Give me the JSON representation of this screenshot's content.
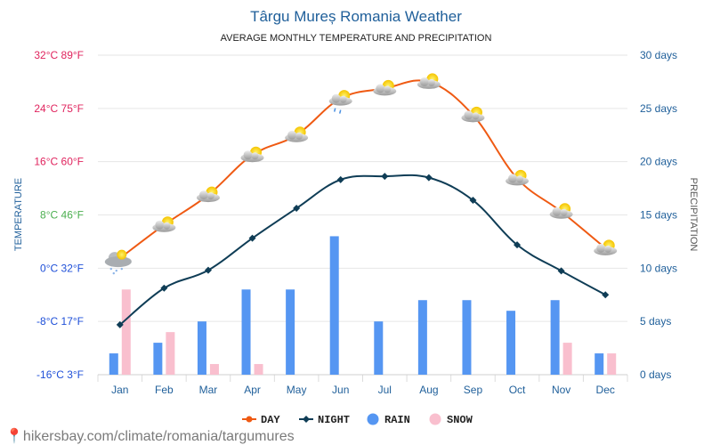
{
  "chart_data": {
    "type": "line",
    "title": "Târgu Mureș Romania Weather",
    "subtitle": "AVERAGE MONTHLY TEMPERATURE AND PRECIPITATION",
    "ylabel_left": "TEMPERATURE",
    "ylabel_right": "PRECIPITATION",
    "categories": [
      "Jan",
      "Feb",
      "Mar",
      "Apr",
      "May",
      "Jun",
      "Jul",
      "Aug",
      "Sep",
      "Oct",
      "Nov",
      "Dec"
    ],
    "left_axis": {
      "range": [
        -16,
        32
      ],
      "ticks": [
        {
          "value": 32,
          "label": "32°C 89°F",
          "color": "#e0245e"
        },
        {
          "value": 24,
          "label": "24°C 75°F",
          "color": "#e0245e"
        },
        {
          "value": 16,
          "label": "16°C 60°F",
          "color": "#e0245e"
        },
        {
          "value": 8,
          "label": "8°C 46°F",
          "color": "#4caf50"
        },
        {
          "value": 0,
          "label": "0°C 32°F",
          "color": "#1e4fd8"
        },
        {
          "value": -8,
          "label": "-8°C 17°F",
          "color": "#1e4fd8"
        },
        {
          "value": -16,
          "label": "-16°C 3°F",
          "color": "#1e4fd8"
        }
      ]
    },
    "right_axis": {
      "range": [
        0,
        30
      ],
      "ticks": [
        {
          "value": 30,
          "label": "30 days"
        },
        {
          "value": 25,
          "label": "25 days"
        },
        {
          "value": 20,
          "label": "20 days"
        },
        {
          "value": 15,
          "label": "15 days"
        },
        {
          "value": 10,
          "label": "10 days"
        },
        {
          "value": 5,
          "label": "5 days"
        },
        {
          "value": 0,
          "label": "0 days"
        }
      ]
    },
    "series": [
      {
        "name": "DAY",
        "kind": "line",
        "axis": "left",
        "color": "#ef5a13",
        "values": [
          1.5,
          6.5,
          11,
          17,
          20,
          25.5,
          27,
          28,
          23,
          13.5,
          8.5,
          3
        ]
      },
      {
        "name": "NIGHT",
        "kind": "line",
        "axis": "left",
        "color": "#0f3d56",
        "values": [
          -8.5,
          -3,
          -0.3,
          4.5,
          9,
          13.3,
          13.8,
          13.6,
          10.2,
          3.5,
          -0.4,
          -4
        ]
      },
      {
        "name": "RAIN",
        "kind": "bar",
        "axis": "right",
        "color": "#5596f2",
        "values": [
          2,
          3,
          5,
          8,
          8,
          13,
          5,
          7,
          7,
          6,
          7,
          2
        ]
      },
      {
        "name": "SNOW",
        "kind": "bar",
        "axis": "right",
        "color": "#f9bfce",
        "values": [
          8,
          4,
          1,
          1,
          0,
          0,
          0,
          0,
          0,
          0,
          3,
          2
        ]
      }
    ],
    "weather_icons": [
      "snow-cloud",
      "sun-cloud",
      "sun-cloud",
      "sun-cloud",
      "sun-cloud",
      "rain-cloud",
      "sun-cloud",
      "sun-cloud",
      "sun-cloud",
      "sun-cloud",
      "sun-cloud",
      "sun-cloud"
    ],
    "grid": true,
    "legend_position": "bottom-center"
  },
  "footer": {
    "link_text": "hikersbay.com/climate/romania/targumures"
  }
}
